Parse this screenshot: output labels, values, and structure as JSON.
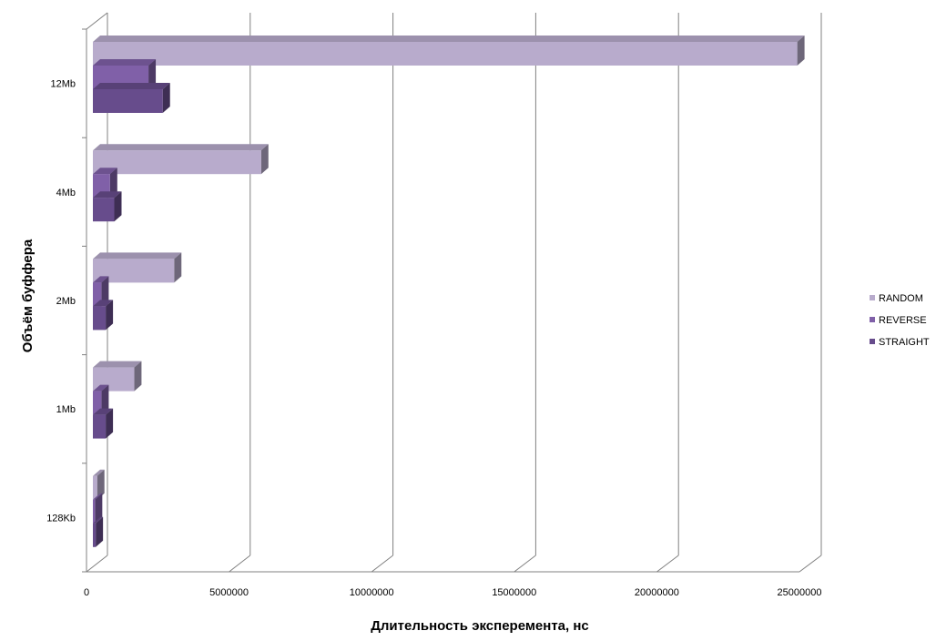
{
  "chart_data": {
    "type": "bar",
    "orientation": "horizontal",
    "style": "3d-clustered",
    "categories": [
      "12Mb",
      "4Mb",
      "2Mb",
      "1Mb",
      "128Kb"
    ],
    "series": [
      {
        "name": "RANDOM",
        "values": [
          24700000,
          5900000,
          2850000,
          1450000,
          150000
        ]
      },
      {
        "name": "REVERSE",
        "values": [
          1950000,
          600000,
          300000,
          300000,
          75000
        ]
      },
      {
        "name": "STRAIGHT",
        "values": [
          2450000,
          750000,
          450000,
          450000,
          100000
        ]
      }
    ],
    "xlabel": "Длительность эксперемента, нс",
    "ylabel": "Объём буффера",
    "xlim": [
      0,
      25000000
    ],
    "xticks": [
      0,
      5000000,
      10000000,
      15000000,
      20000000,
      25000000
    ],
    "xtick_labels": [
      "0",
      "5000000",
      "10000000",
      "15000000",
      "20000000",
      "25000000"
    ],
    "grid": "vertical",
    "legend_position": "right"
  },
  "colors": {
    "RANDOM": "#b8abcc",
    "REVERSE": "#8060a8",
    "STRAIGHT": "#674c8c",
    "grid": "#808080"
  }
}
